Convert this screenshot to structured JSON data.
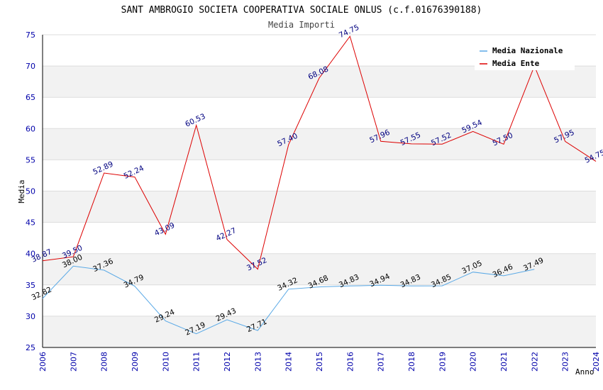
{
  "chart_data": {
    "type": "line",
    "title": "SANT AMBROGIO SOCIETA COOPERATIVA SOCIALE ONLUS (c.f.01676390188)",
    "subtitle": "Media Importi",
    "xlabel": "Anno",
    "ylabel": "Media",
    "ylim": [
      25,
      75
    ],
    "yticks": [
      25,
      30,
      35,
      40,
      45,
      50,
      55,
      60,
      65,
      70,
      75
    ],
    "categories": [
      "2006",
      "2007",
      "2008",
      "2009",
      "2010",
      "2011",
      "2012",
      "2013",
      "2014",
      "2015",
      "2016",
      "2017",
      "2018",
      "2019",
      "2020",
      "2021",
      "2022",
      "2023",
      "2024"
    ],
    "legend_position": "top-right",
    "series": [
      {
        "name": "Media Nazionale",
        "color": "#5aa9e6",
        "label_color": "#000000",
        "values": [
          32.82,
          38.0,
          37.36,
          34.79,
          29.24,
          27.19,
          29.43,
          27.71,
          34.32,
          34.68,
          34.83,
          34.94,
          34.83,
          34.85,
          37.05,
          36.46,
          37.49,
          null,
          null
        ],
        "labels": [
          "32.82",
          "38.00",
          "37.36",
          "34.79",
          "29.24",
          "27.19",
          "29.43",
          "27.71",
          "34.32",
          "34.68",
          "34.83",
          "34.94",
          "34.83",
          "34.85",
          "37.05",
          "36.46",
          "37.49",
          null,
          null
        ]
      },
      {
        "name": "Media Ente",
        "color": "#dd0000",
        "label_color": "#000080",
        "values": [
          38.87,
          39.5,
          52.89,
          52.24,
          43.09,
          60.53,
          42.27,
          37.52,
          57.4,
          68.08,
          74.75,
          57.96,
          57.55,
          57.52,
          59.54,
          57.5,
          70.0,
          57.95,
          54.75
        ],
        "labels": [
          "38.87",
          "39.50",
          "52.89",
          "52.24",
          "43.09",
          "60.53",
          "42.27",
          "37.52",
          "57.40",
          "68.08",
          "74.75",
          "57.96",
          "57.55",
          "57.52",
          "59.54",
          "57.50",
          null,
          "57.95",
          "54.75"
        ]
      }
    ]
  }
}
